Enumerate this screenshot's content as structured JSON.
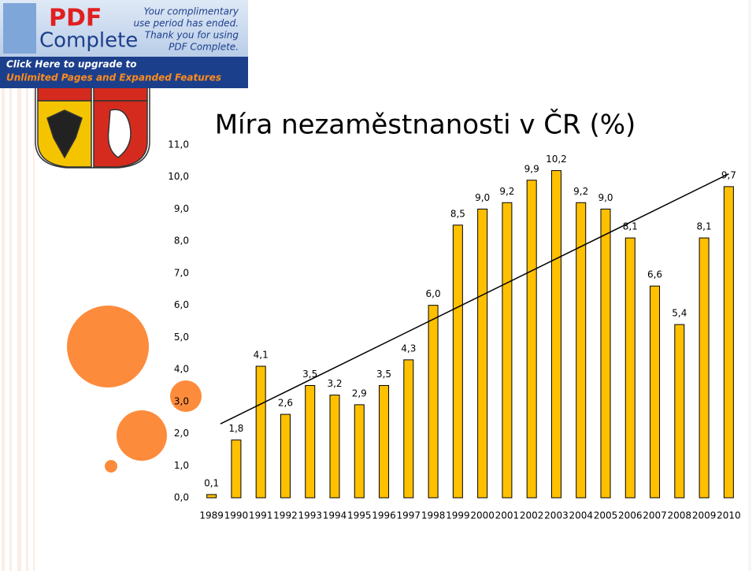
{
  "banner": {
    "logo": "PDF",
    "product": "Complete",
    "notice": [
      "Your complimentary",
      "use period has ended.",
      "Thank you for using",
      "PDF Complete."
    ],
    "upgrade": [
      "Click Here to upgrade to",
      "Unlimited Pages and Expanded Features"
    ]
  },
  "chart_data": {
    "type": "bar",
    "title": "Míra nezaměstnanosti v ČR (%)",
    "categories": [
      "1989",
      "1990",
      "1991",
      "1992",
      "1993",
      "1994",
      "1995",
      "1996",
      "1997",
      "1998",
      "1999",
      "2000",
      "2001",
      "2002",
      "2003",
      "2004",
      "2005",
      "2006",
      "2007",
      "2008",
      "2009",
      "2010"
    ],
    "values": [
      0.1,
      1.8,
      4.1,
      2.6,
      3.5,
      3.2,
      2.9,
      3.5,
      4.3,
      6.0,
      8.5,
      9.0,
      9.2,
      9.9,
      10.2,
      9.2,
      9.0,
      8.1,
      6.6,
      5.4,
      8.1,
      9.7
    ],
    "value_labels": [
      "0,1",
      "1,8",
      "4,1",
      "2,6",
      "3,5",
      "3,2",
      "2,9",
      "3,5",
      "4,3",
      "6,0",
      "8,5",
      "9,0",
      "9,2",
      "9,9",
      "10,2",
      "9,2",
      "9,0",
      "8,1",
      "6,6",
      "5,4",
      "8,1",
      "9,7"
    ],
    "color": "#ffc000",
    "trendline": "linear",
    "ylim": [
      0,
      11
    ],
    "yticks": [
      {
        "value": 0,
        "label": "0,0"
      },
      {
        "value": 1,
        "label": "1,0"
      },
      {
        "value": 2,
        "label": "2,0"
      },
      {
        "value": 3,
        "label": "3,0"
      },
      {
        "value": 4,
        "label": "4,0"
      },
      {
        "value": 5,
        "label": "5,0"
      },
      {
        "value": 6,
        "label": "6,0"
      },
      {
        "value": 7,
        "label": "7,0"
      },
      {
        "value": 8,
        "label": "8,0"
      },
      {
        "value": 9,
        "label": "9,0"
      },
      {
        "value": 10,
        "label": "10,0"
      },
      {
        "value": 11,
        "label": "11,0"
      }
    ]
  }
}
